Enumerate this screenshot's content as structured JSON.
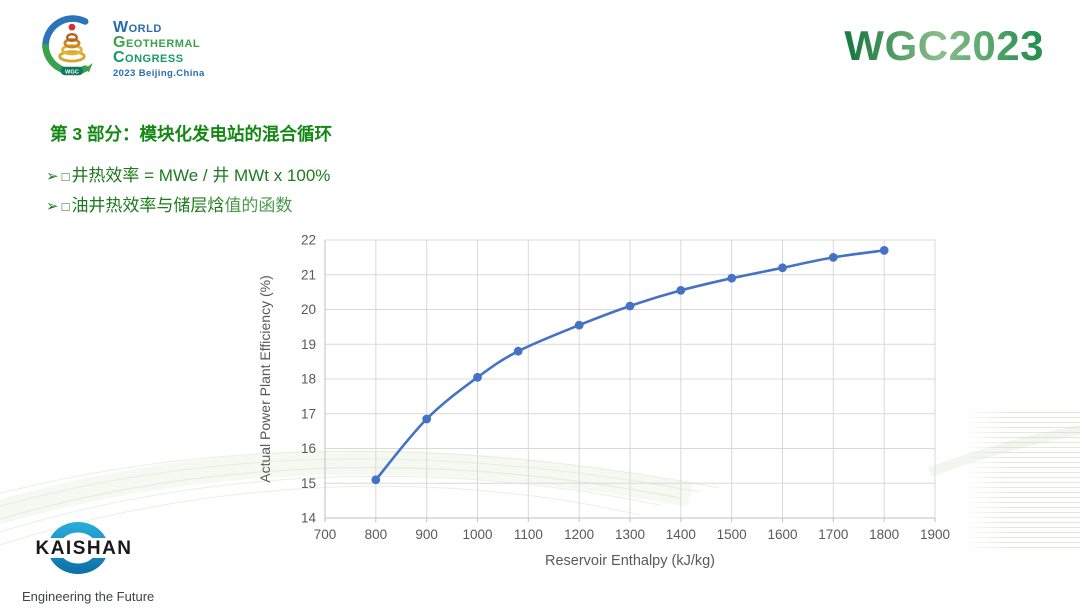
{
  "colors": {
    "brand_green": "#28854b",
    "title_green": "#148814",
    "bullet_green": "#1d7a1d",
    "chart_line_blue": "#4472c4",
    "chart_axis_text": "#595959",
    "chart_grid": "#d9d9d9",
    "kaishan_blue": "#1b96cc"
  },
  "header": {
    "congress_logo": {
      "badge": "WGC",
      "line1": "World",
      "line2": "Geothermal",
      "line3": "Congress",
      "line4": "2023 Beijing.China"
    },
    "brand": "WGC2023"
  },
  "content": {
    "title": "第 3 部分：模块化发电站的混合循环",
    "bullets": [
      {
        "marker": "➢",
        "box": "□",
        "text": "井热效率 = MWe / 井 MWt x 100%",
        "text_tail": ""
      },
      {
        "marker": "➢",
        "box": "□",
        "text": "油井热效率与储层焓",
        "text_tail": "值的函数"
      }
    ]
  },
  "chart_data": {
    "type": "line",
    "title": "",
    "xlabel": "Reservoir Enthalpy (kJ/kg)",
    "ylabel": "Actual Power Plant Efficiency (%)",
    "xlim": [
      700,
      1900
    ],
    "ylim": [
      14,
      22
    ],
    "x_ticks": [
      700,
      800,
      900,
      1000,
      1100,
      1200,
      1300,
      1400,
      1500,
      1600,
      1700,
      1800,
      1900
    ],
    "y_ticks": [
      14,
      15,
      16,
      17,
      18,
      19,
      20,
      21,
      22
    ],
    "grid": true,
    "legend": false,
    "series": [
      {
        "name": "Actual Power Plant Efficiency",
        "x": [
          800,
          900,
          1000,
          1080,
          1200,
          1300,
          1400,
          1500,
          1600,
          1700,
          1800
        ],
        "y": [
          15.1,
          16.85,
          18.05,
          18.8,
          19.55,
          20.1,
          20.55,
          20.9,
          21.2,
          21.5,
          21.7
        ],
        "color": "#4472c4",
        "marker": "circle"
      }
    ]
  },
  "footer": {
    "logo_text": "KAISHAN",
    "tagline": "Engineering the Future"
  }
}
